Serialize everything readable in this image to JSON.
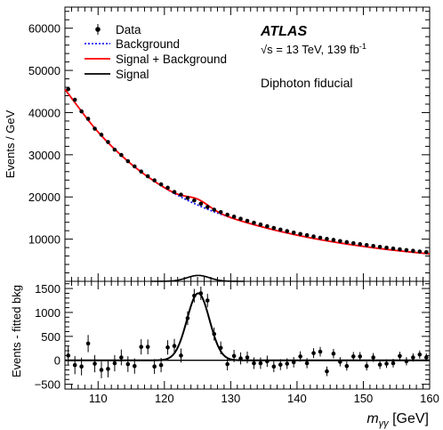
{
  "chart_data": [
    {
      "type": "scatter",
      "ylabel": "Events / GeV",
      "xlim": [
        105,
        160
      ],
      "ylim": [
        0,
        65000
      ],
      "yticks": [
        10000,
        20000,
        30000,
        40000,
        50000,
        60000
      ],
      "experiment": "ATLAS",
      "energy_label": "√s = 13 TeV, 139 fb",
      "energy_superscript": "-1",
      "region_label": "Diphoton fiducial",
      "legend": {
        "placement": "top-left",
        "entries": [
          {
            "label": "Data",
            "style": "marker"
          },
          {
            "label": "Background",
            "style": "dotted",
            "color": "#1a1aff"
          },
          {
            "label": "Signal + Background",
            "style": "solid",
            "color": "#ff0000"
          },
          {
            "label": "Signal",
            "style": "solid",
            "color": "#000000"
          }
        ]
      },
      "signal_mean": 125.1,
      "signal_sigma": 1.7,
      "signal_peak": 1400,
      "series": [
        {
          "name": "Data",
          "x": [
            105.5,
            106.5,
            107.5,
            108.5,
            109.5,
            110.5,
            111.5,
            112.5,
            113.5,
            114.5,
            115.5,
            116.5,
            117.5,
            118.5,
            119.5,
            120.5,
            121.5,
            122.5,
            123.5,
            124.5,
            125.5,
            126.5,
            127.5,
            128.5,
            129.5,
            130.5,
            131.5,
            132.5,
            133.5,
            134.5,
            135.5,
            136.5,
            137.5,
            138.5,
            139.5,
            140.5,
            141.5,
            142.5,
            143.5,
            144.5,
            145.5,
            146.5,
            147.5,
            148.5,
            149.5,
            150.5,
            151.5,
            152.5,
            153.5,
            154.5,
            155.5,
            156.5,
            157.5,
            158.5,
            159.5
          ],
          "y": [
            45550,
            43030,
            40290,
            38520,
            36190,
            34750,
            33020,
            31210,
            29950,
            28480,
            27250,
            26020,
            24910,
            23930,
            22980,
            22190,
            21170,
            20550,
            19760,
            19180,
            18400,
            17630,
            16990,
            16400,
            15800,
            15330,
            14830,
            14350,
            13880,
            13460,
            13070,
            12650,
            12260,
            11900,
            11550,
            11240,
            10940,
            10640,
            10340,
            10060,
            9820,
            9550,
            9290,
            9050,
            8820,
            8590,
            8380,
            8170,
            7970,
            7780,
            7590,
            7410,
            7240,
            7070,
            6900
          ]
        }
      ],
      "background_fit": {
        "name": "Background",
        "x": [
          105,
          110,
          115,
          120,
          125,
          130,
          135,
          140,
          145,
          150,
          155,
          160
        ],
        "y": [
          45500,
          35400,
          27800,
          22200,
          18100,
          15100,
          12800,
          10950,
          9470,
          8280,
          7300,
          6500
        ]
      }
    },
    {
      "type": "scatter",
      "xlabel": "m",
      "xlabel_subscript": "γγ",
      "xlabel_unit": " [GeV]",
      "ylabel": "Events - fitted bkg",
      "xlim": [
        105,
        160
      ],
      "ylim": [
        -600,
        1650
      ],
      "xticks": [
        110,
        120,
        130,
        140,
        150,
        160
      ],
      "yticks": [
        -500,
        0,
        500,
        1000,
        1500
      ],
      "series": [
        {
          "name": "Data",
          "x": [
            105.5,
            106.5,
            107.5,
            108.5,
            109.5,
            110.5,
            111.5,
            112.5,
            113.5,
            114.5,
            115.5,
            116.5,
            117.5,
            118.5,
            119.5,
            120.5,
            121.5,
            122.5,
            123.5,
            124.5,
            125.5,
            126.5,
            127.5,
            128.5,
            129.5,
            130.5,
            131.5,
            132.5,
            133.5,
            134.5,
            135.5,
            136.5,
            137.5,
            138.5,
            139.5,
            140.5,
            141.5,
            142.5,
            143.5,
            144.5,
            145.5,
            146.5,
            147.5,
            148.5,
            149.5,
            150.5,
            151.5,
            152.5,
            153.5,
            154.5,
            155.5,
            156.5,
            157.5,
            158.5,
            159.5
          ],
          "y": [
            100,
            -100,
            -130,
            350,
            -70,
            -200,
            -180,
            -60,
            60,
            -80,
            -120,
            280,
            280,
            -130,
            -100,
            270,
            300,
            100,
            880,
            1350,
            1400,
            1250,
            550,
            260,
            -80,
            90,
            40,
            60,
            -60,
            -60,
            -20,
            -130,
            -90,
            -70,
            -40,
            80,
            -60,
            150,
            180,
            -230,
            140,
            -30,
            -120,
            80,
            80,
            -120,
            60,
            -90,
            -70,
            -60,
            90,
            -20,
            60,
            120,
            60
          ],
          "yerr": [
            190,
            190,
            185,
            180,
            180,
            175,
            175,
            170,
            165,
            165,
            160,
            160,
            155,
            155,
            150,
            150,
            148,
            146,
            144,
            142,
            140,
            138,
            135,
            133,
            130,
            128,
            126,
            124,
            122,
            120,
            118,
            116,
            114,
            112,
            110,
            108,
            106,
            104,
            102,
            100,
            99,
            97,
            96,
            95,
            94,
            93,
            92,
            91,
            90,
            89,
            88,
            87,
            86,
            85,
            84
          ]
        }
      ]
    }
  ]
}
